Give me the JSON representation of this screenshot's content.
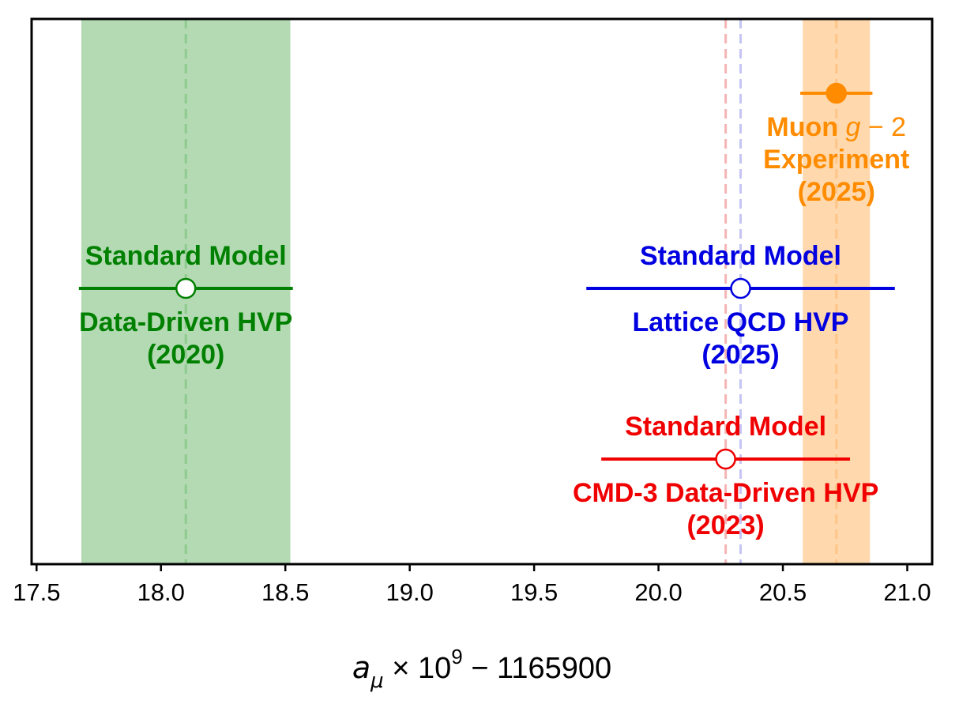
{
  "chart_data": {
    "type": "scatter",
    "xlim": [
      17.48,
      21.1
    ],
    "ticks": [
      "17.5",
      "18.0",
      "18.5",
      "19.0",
      "19.5",
      "20.0",
      "20.5",
      "21.0"
    ],
    "tick_values": [
      17.5,
      18.0,
      18.5,
      19.0,
      19.5,
      20.0,
      20.5,
      21.0
    ],
    "xlabel": {
      "symbol": "a",
      "subscript": "μ",
      "times": " × 10",
      "exponent": "9",
      "offset": " − 1165900"
    },
    "bands": [
      {
        "name": "Data-Driven HVP (2020)",
        "min": 17.68,
        "max": 18.52,
        "center": 18.1,
        "color": "#b3dab3",
        "line_color": "#8fcb8f"
      },
      {
        "name": "Muon g-2 Experiment (2025)",
        "min": 20.58,
        "max": 20.85,
        "center": 20.715,
        "color": "#ffd9ad",
        "line_color": "#ffc488"
      }
    ],
    "vlines": [
      {
        "x": 20.27,
        "color": "#f5b4b4"
      },
      {
        "x": 20.33,
        "color": "#c4c4f5"
      }
    ],
    "series": [
      {
        "name": "Muon g-2 Experiment (2025)",
        "x": 20.715,
        "xerr": 0.145,
        "level": 4,
        "filled": true,
        "color": "#ff8c00",
        "label_above": [],
        "label_below": [
          {
            "pre": "Muon ",
            "math": "g",
            "post": " − 2"
          },
          {
            "pre": "Experiment",
            "math": "",
            "post": ""
          },
          {
            "pre": "(2025)",
            "math": "",
            "post": ""
          }
        ]
      },
      {
        "name": "Standard Model Data-Driven HVP (2020)",
        "x": 18.1,
        "xerr": 0.43,
        "level": 2.85,
        "filled": false,
        "color": "#008000",
        "label_above": [
          {
            "pre": "Standard Model",
            "math": "",
            "post": ""
          }
        ],
        "label_below": [
          {
            "pre": "Data-Driven HVP",
            "math": "",
            "post": ""
          },
          {
            "pre": "(2020)",
            "math": "",
            "post": ""
          }
        ]
      },
      {
        "name": "Standard Model Lattice QCD HVP (2025)",
        "x": 20.33,
        "xerr": 0.62,
        "level": 2.85,
        "filled": false,
        "color": "#0000e0",
        "label_above": [
          {
            "pre": "Standard Model",
            "math": "",
            "post": ""
          }
        ],
        "label_below": [
          {
            "pre": "Lattice QCD HVP",
            "math": "",
            "post": ""
          },
          {
            "pre": "(2025)",
            "math": "",
            "post": ""
          }
        ]
      },
      {
        "name": "Standard Model CMD-3 Data-Driven HVP (2023)",
        "x": 20.27,
        "xerr": 0.5,
        "level": 1.8,
        "filled": false,
        "color": "#f00000",
        "label_above": [
          {
            "pre": "Standard Model",
            "math": "",
            "post": ""
          }
        ],
        "label_below": [
          {
            "pre": "CMD-3 Data-Driven HVP",
            "math": "",
            "post": ""
          },
          {
            "pre": "(2023)",
            "math": "",
            "post": ""
          }
        ]
      }
    ]
  }
}
